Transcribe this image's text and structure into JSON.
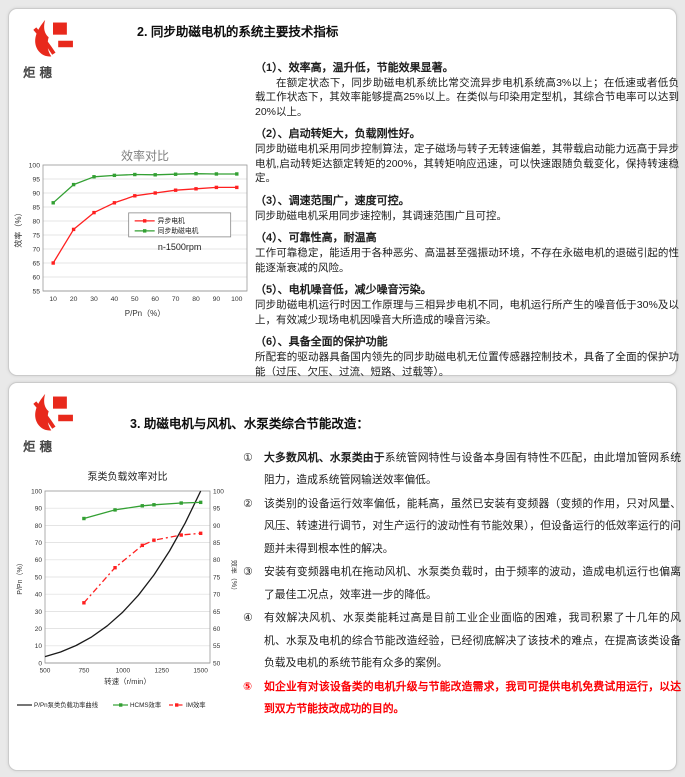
{
  "logo": {
    "text": "炬穗",
    "color": "#e8291c"
  },
  "panel1": {
    "title": "2. 同步助磁电机的系统主要技术指标",
    "items": [
      {
        "heading": "（1）、效率高，温升低，节能效果显著。",
        "body": "在额定状态下，同步助磁电机系统比常交流异步电机系统高3%以上；在低速或者低负载工作状态下，其效率能够提高25%以上。在类似与印染用定型机，其综合节电率可以达到20%以上。",
        "indent": true
      },
      {
        "heading": "（2）、启动转矩大，负载刚性好。",
        "body": "同步助磁电机采用同步控制算法，定子磁场与转子无转速偏差，其带载启动能力远高于异步电机,启动转矩达额定转矩的200%，其转矩响应迅速，可以快速跟随负载变化，保持转速稳定。"
      },
      {
        "heading": "（3）、调速范围广，速度可控。",
        "body": "同步助磁电机采用同步速控制，其调速范围广且可控。"
      },
      {
        "heading": "（4）、可靠性高，耐温高",
        "body": "工作可靠稳定，能适用于各种恶劣、高温甚至强振动环境，不存在永磁电机的退磁引起的性能逐渐衰减的风险。"
      },
      {
        "heading": "（5）、电机噪音低，减少噪音污染。",
        "body": "同步助磁电机运行时因工作原理与三相异步电机不同，电机运行所产生的噪音低于30%及以上，有效减少现场电机因噪音大所造成的噪音污染。"
      },
      {
        "heading": "（6）、具备全面的保护功能",
        "body": "所配套的驱动器具备国内领先的同步助磁电机无位置传感器控制技术，具备了全面的保护功能（过压、欠压、过流、短路、过载等）。"
      }
    ]
  },
  "panel2": {
    "title": "3. 助磁电机与风机、水泵类综合节能改造：",
    "items": [
      {
        "num": "①",
        "lead": "大多数风机、水泵类由于",
        "body": "系统管网特性与设备本身固有特性不匹配，由此增加管网系统阻力，造成系统管网输送效率偏低。"
      },
      {
        "num": "②",
        "body": "该类别的设备运行效率偏低，能耗高，虽然已安装有变频器（变频的作用，只对风量、风压、转速进行调节，对生产运行的波动性有节能效果），但设备运行的低效率运行的问题并未得到根本性的解决。"
      },
      {
        "num": "③",
        "body": "安装有变频器电机在拖动风机、水泵类负载时，由于频率的波动，造成电机运行也偏离了最佳工况点，效率进一步的降低。"
      },
      {
        "num": "④",
        "body": "有效解决风机、水泵类能耗过高是目前工业企业面临的困难，我司积累了十几年的风机、水泵及电机的综合节能改造经验，已经彻底解决了该技术的难点，在提高该类设备负载及电机的系统节能有众多的案例。"
      },
      {
        "num": "⑤",
        "body": "如企业有对该设备类的电机升级与节能改造需求，我司可提供电机免费试用运行，以达到双方节能技改成功的目的。",
        "highlight": true
      }
    ]
  },
  "chart_data": [
    {
      "type": "line",
      "title": "效率对比",
      "xlabel": "P/Pn（%）",
      "ylabel": "效率（%）",
      "annotation": "n-1500rpm",
      "x": [
        10,
        20,
        30,
        40,
        50,
        60,
        70,
        80,
        90,
        100
      ],
      "xlim": [
        5,
        105
      ],
      "ylim": [
        55,
        100
      ],
      "ytick_step": 5,
      "grid": true,
      "legend_position": "center-right",
      "series": [
        {
          "name": "异步电机",
          "color": "#ff2020",
          "values": [
            65,
            77,
            83,
            86.5,
            89,
            90,
            91,
            91.5,
            92,
            92
          ]
        },
        {
          "name": "同步助磁电机",
          "color": "#33a033",
          "values": [
            86.5,
            93,
            95.8,
            96.3,
            96.6,
            96.5,
            96.7,
            96.9,
            96.8,
            96.8
          ]
        }
      ]
    },
    {
      "type": "line",
      "title": "泵类负载效率对比",
      "xlabel": "转速（r/min）",
      "ylabel_left": "P/Pn（%）",
      "ylabel_right": "效率（%）",
      "x_ticks": [
        500,
        750,
        1000,
        1250,
        1500
      ],
      "xlim": [
        500,
        1560
      ],
      "ylim_left": [
        0,
        100
      ],
      "ytick_step_left": 10,
      "ylim_right": [
        50,
        100
      ],
      "ytick_step_right": 5,
      "grid": true,
      "legend_position": "bottom",
      "series": [
        {
          "name": "P/Pn泵类负载功率曲线",
          "axis": "left",
          "color": "#1a1a1a",
          "markers": false,
          "x": [
            500,
            600,
            700,
            800,
            900,
            1000,
            1100,
            1200,
            1300,
            1400,
            1500
          ],
          "values": [
            3.7,
            6.4,
            10.2,
            15.2,
            21.6,
            29.6,
            39.4,
            51.2,
            65.1,
            81.3,
            100
          ]
        },
        {
          "name": "HCMS效率",
          "axis": "right",
          "color": "#33a033",
          "markers": true,
          "x": [
            750,
            950,
            1125,
            1200,
            1375,
            1500
          ],
          "values": [
            92,
            94.5,
            95.7,
            96,
            96.5,
            96.7
          ]
        },
        {
          "name": "IM效率",
          "axis": "right",
          "color": "#ff2020",
          "markers": true,
          "dash": "6 3 2 3",
          "x": [
            750,
            950,
            1125,
            1200,
            1375,
            1500
          ],
          "values": [
            67.5,
            77.7,
            84.2,
            85.7,
            87.2,
            87.7
          ]
        }
      ]
    }
  ]
}
